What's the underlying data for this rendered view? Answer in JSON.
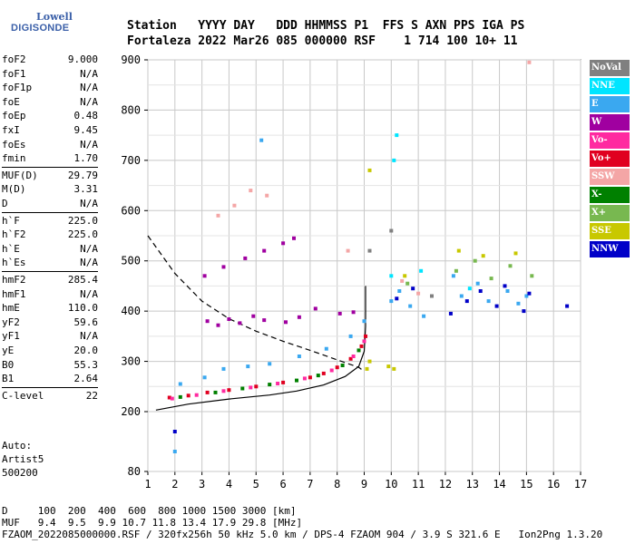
{
  "logo": {
    "line1": "Lowell",
    "line2": "DIGISONDE"
  },
  "header": {
    "line1": "Station   YYYY DAY   DDD HHMMSS P1  FFS S AXN PPS IGA PS",
    "line2": "Fortaleza 2022 Mar26 085 000000 RSF    1 714 100 10+ 11"
  },
  "params": [
    {
      "name": "foF2",
      "value": "9.000"
    },
    {
      "name": "foF1",
      "value": "N/A"
    },
    {
      "name": "foF1p",
      "value": "N/A"
    },
    {
      "name": "foE",
      "value": "N/A"
    },
    {
      "name": "foEp",
      "value": "0.48"
    },
    {
      "name": "fxI",
      "value": "9.45"
    },
    {
      "name": "foEs",
      "value": "N/A"
    },
    {
      "name": "fmin",
      "value": "1.70"
    },
    {
      "name": "MUF(D)",
      "value": "29.79"
    },
    {
      "name": "M(D)",
      "value": "3.31"
    },
    {
      "name": "D",
      "value": "N/A"
    },
    {
      "name": "h`F",
      "value": "225.0"
    },
    {
      "name": "h`F2",
      "value": "225.0"
    },
    {
      "name": "h`E",
      "value": "N/A"
    },
    {
      "name": "h`Es",
      "value": "N/A"
    },
    {
      "name": "hmF2",
      "value": "285.4"
    },
    {
      "name": "hmF1",
      "value": "N/A"
    },
    {
      "name": "hmE",
      "value": "110.0"
    },
    {
      "name": "yF2",
      "value": "59.6"
    },
    {
      "name": "yF1",
      "value": "N/A"
    },
    {
      "name": "yE",
      "value": "20.0"
    },
    {
      "name": "B0",
      "value": "55.3"
    },
    {
      "name": "B1",
      "value": "2.64"
    },
    {
      "name": "C-level",
      "value": "22"
    }
  ],
  "auto": {
    "line1": "Auto:",
    "line2": "Artist5",
    "line3": "500200"
  },
  "footer": {
    "line1": "D     100  200  400  600  800 1000 1500 3000 [km]",
    "line2": "MUF   9.4  9.5  9.9 10.7 11.8 13.4 17.9 29.8 [MHz]",
    "line3": "FZAOM_2022085000000.RSF / 320fx256h 50 kHz 5.0 km / DPS-4 FZAOM 904 / 3.9 S 321.6 E   Ion2Png 1.3.20"
  },
  "legend": [
    {
      "label": "NoVal",
      "color": "#808080"
    },
    {
      "label": "NNE",
      "color": "#00e5ff"
    },
    {
      "label": "E",
      "color": "#3aa8f0"
    },
    {
      "label": "W",
      "color": "#a000a0"
    },
    {
      "label": "Vo-",
      "color": "#ff2aa0"
    },
    {
      "label": "Vo+",
      "color": "#e00020"
    },
    {
      "label": "SSW",
      "color": "#f4a6a6"
    },
    {
      "label": "X-",
      "color": "#008000"
    },
    {
      "label": "X+",
      "color": "#78b850"
    },
    {
      "label": "SSE",
      "color": "#c8c800"
    },
    {
      "label": "NNW",
      "color": "#0000c8"
    }
  ],
  "chart_data": {
    "type": "scatter",
    "title": "",
    "xlabel": "",
    "ylabel": "",
    "xlim": [
      1,
      17
    ],
    "ylim": [
      80,
      900
    ],
    "xticks": [
      1,
      2,
      3,
      4,
      5,
      6,
      7,
      8,
      9,
      10,
      11,
      12,
      13,
      14,
      15,
      16,
      17
    ],
    "yticks": [
      80,
      200,
      300,
      400,
      500,
      600,
      700,
      800,
      900
    ],
    "grid": true,
    "legend_position": "right",
    "series": [
      {
        "color": "#e00020",
        "points": [
          [
            1.8,
            228
          ],
          [
            2.5,
            232
          ],
          [
            3.2,
            238
          ],
          [
            4,
            243
          ],
          [
            5,
            250
          ],
          [
            6,
            258
          ],
          [
            7,
            268
          ],
          [
            7.5,
            276
          ],
          [
            8,
            288
          ],
          [
            8.5,
            305
          ],
          [
            8.9,
            330
          ],
          [
            9.05,
            350
          ]
        ]
      },
      {
        "color": "#ff2aa0",
        "points": [
          [
            1.9,
            226
          ],
          [
            2.8,
            233
          ],
          [
            3.8,
            241
          ],
          [
            4.8,
            248
          ],
          [
            5.8,
            256
          ],
          [
            6.8,
            266
          ],
          [
            7.8,
            282
          ],
          [
            8.6,
            310
          ],
          [
            9.0,
            340
          ]
        ]
      },
      {
        "color": "#008000",
        "points": [
          [
            2.2,
            229
          ],
          [
            3.5,
            238
          ],
          [
            4.5,
            246
          ],
          [
            5.5,
            254
          ],
          [
            6.5,
            262
          ],
          [
            7.3,
            272
          ],
          [
            8.2,
            292
          ],
          [
            8.8,
            322
          ]
        ]
      },
      {
        "color": "#a000a0",
        "points": [
          [
            3.2,
            380
          ],
          [
            3.6,
            372
          ],
          [
            4.0,
            384
          ],
          [
            4.4,
            376
          ],
          [
            4.9,
            390
          ],
          [
            5.3,
            382
          ],
          [
            6.1,
            378
          ],
          [
            6.6,
            388
          ],
          [
            7.2,
            405
          ],
          [
            8.1,
            395
          ],
          [
            8.6,
            398
          ],
          [
            3.1,
            470
          ],
          [
            3.8,
            488
          ],
          [
            4.6,
            505
          ],
          [
            5.3,
            520
          ],
          [
            6.0,
            535
          ],
          [
            6.4,
            545
          ]
        ]
      },
      {
        "color": "#3aa8f0",
        "points": [
          [
            2.2,
            255
          ],
          [
            3.1,
            268
          ],
          [
            3.8,
            285
          ],
          [
            4.7,
            290
          ],
          [
            5.5,
            295
          ],
          [
            6.6,
            310
          ],
          [
            7.6,
            325
          ],
          [
            8.5,
            350
          ],
          [
            9.0,
            380
          ],
          [
            10.0,
            420
          ],
          [
            10.3,
            440
          ],
          [
            10.7,
            410
          ],
          [
            11.2,
            390
          ],
          [
            12.3,
            470
          ],
          [
            12.6,
            430
          ],
          [
            13.2,
            455
          ],
          [
            13.6,
            420
          ],
          [
            14.3,
            440
          ],
          [
            14.7,
            415
          ],
          [
            15.0,
            430
          ],
          [
            2.0,
            120
          ],
          [
            5.2,
            740
          ]
        ]
      },
      {
        "color": "#0000c8",
        "points": [
          [
            10.2,
            425
          ],
          [
            10.8,
            445
          ],
          [
            12.2,
            395
          ],
          [
            12.8,
            420
          ],
          [
            13.3,
            440
          ],
          [
            13.9,
            410
          ],
          [
            14.2,
            450
          ],
          [
            14.9,
            400
          ],
          [
            15.1,
            435
          ],
          [
            2.0,
            160
          ],
          [
            16.5,
            410
          ]
        ]
      },
      {
        "color": "#f4a6a6",
        "points": [
          [
            3.6,
            590
          ],
          [
            4.2,
            610
          ],
          [
            4.8,
            640
          ],
          [
            5.4,
            630
          ],
          [
            10.4,
            460
          ],
          [
            11.0,
            435
          ],
          [
            15.1,
            895
          ],
          [
            8.4,
            520
          ]
        ]
      },
      {
        "color": "#c8c800",
        "points": [
          [
            9.1,
            285
          ],
          [
            9.2,
            300
          ],
          [
            9.9,
            290
          ],
          [
            10.1,
            285
          ],
          [
            10.5,
            470
          ],
          [
            12.5,
            520
          ],
          [
            13.4,
            510
          ],
          [
            14.6,
            515
          ],
          [
            9.2,
            680
          ]
        ]
      },
      {
        "color": "#78b850",
        "points": [
          [
            10.6,
            455
          ],
          [
            12.4,
            480
          ],
          [
            13.1,
            500
          ],
          [
            13.7,
            465
          ],
          [
            14.4,
            490
          ],
          [
            15.2,
            470
          ]
        ]
      },
      {
        "color": "#00e5ff",
        "points": [
          [
            10.1,
            700
          ],
          [
            10.2,
            750
          ],
          [
            10.0,
            470
          ],
          [
            11.1,
            480
          ],
          [
            12.9,
            445
          ]
        ]
      },
      {
        "color": "#808080",
        "points": [
          [
            9.2,
            520
          ],
          [
            10.0,
            560
          ],
          [
            11.5,
            430
          ]
        ]
      }
    ],
    "curves": [
      {
        "style": "dashed",
        "points": [
          [
            1.0,
            550
          ],
          [
            2.0,
            475
          ],
          [
            3.0,
            420
          ],
          [
            4.0,
            385
          ],
          [
            5.0,
            360
          ],
          [
            6.0,
            340
          ],
          [
            7.0,
            322
          ],
          [
            8.0,
            303
          ],
          [
            8.8,
            288
          ],
          [
            9.0,
            280
          ]
        ]
      },
      {
        "style": "solid",
        "points": [
          [
            1.3,
            203
          ],
          [
            2.5,
            215
          ],
          [
            4.0,
            225
          ],
          [
            5.5,
            233
          ],
          [
            6.5,
            241
          ],
          [
            7.5,
            253
          ],
          [
            8.3,
            270
          ],
          [
            8.8,
            290
          ],
          [
            9.0,
            320
          ],
          [
            9.05,
            370
          ],
          [
            9.05,
            450
          ]
        ]
      }
    ]
  }
}
